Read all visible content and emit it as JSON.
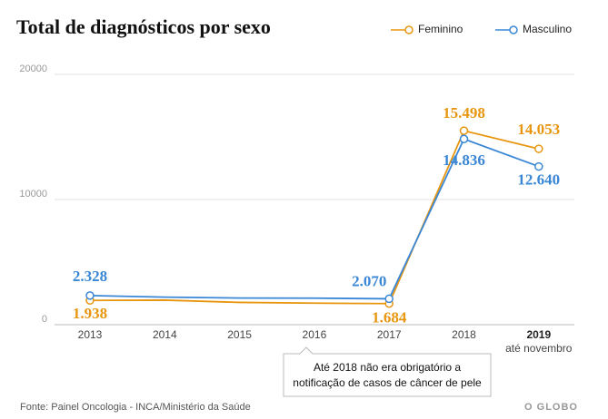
{
  "chart_data": {
    "type": "line",
    "title": "Total de diagnósticos por sexo",
    "categories": [
      "2013",
      "2014",
      "2015",
      "2016",
      "2017",
      "2018",
      "2019"
    ],
    "category_note": "até novembro",
    "series": [
      {
        "name": "Feminino",
        "color": "#e8960f",
        "values": [
          1938,
          1960,
          1780,
          1720,
          1684,
          15498,
          14053
        ],
        "value_labels": [
          "1.938",
          null,
          null,
          null,
          "1.684",
          "15.498",
          "14.053"
        ]
      },
      {
        "name": "Masculino",
        "color": "#3a87d6",
        "values": [
          2328,
          2200,
          2130,
          2120,
          2070,
          14836,
          12640
        ],
        "value_labels": [
          "2.328",
          null,
          null,
          null,
          "2.070",
          "14.836",
          "12.640"
        ]
      }
    ],
    "ylim": [
      0,
      20000
    ],
    "yticks": [
      0,
      10000,
      20000
    ],
    "grid": true,
    "annotation": [
      "Até 2018 não era obrigatório a",
      "notificação de casos de câncer de pele"
    ],
    "source": "Fonte: Painel Oncologia - INCA/Ministério da Saúde",
    "logo": "O GLOBO"
  }
}
